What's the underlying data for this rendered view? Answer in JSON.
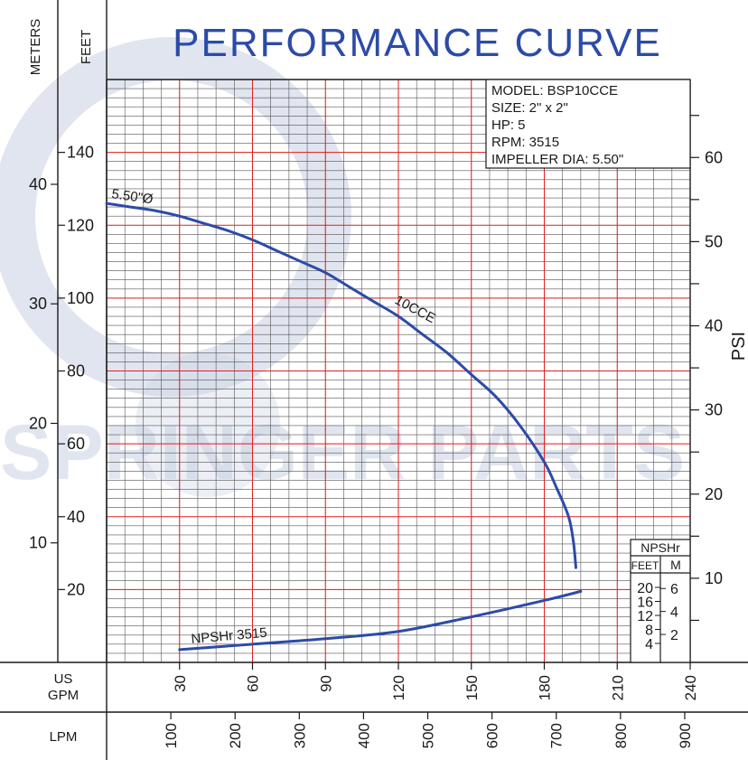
{
  "chart_data": {
    "type": "line",
    "title": "PERFORMANCE CURVE",
    "watermark": "SPRINGER PARTS",
    "info_box": {
      "model": "MODEL: BSP10CCE",
      "size": "SIZE: 2\" x 2\"",
      "hp": "HP: 5",
      "rpm": "RPM: 3515",
      "impeller": "IMPELLER DIA: 5.50\""
    },
    "axes": {
      "meters_label": "METERS",
      "feet_label": "FEET",
      "psi_label": "PSI",
      "gpm_label_1": "US",
      "gpm_label_2": "GPM",
      "lpm_label": "LPM",
      "feet_range": [
        0,
        160
      ],
      "gpm_range": [
        0,
        240
      ],
      "feet_ticks": [
        "20",
        "40",
        "60",
        "80",
        "100",
        "120",
        "140"
      ],
      "feet_tick_values": [
        20,
        40,
        60,
        80,
        100,
        120,
        140
      ],
      "meters_ticks": [
        "10",
        "20",
        "30",
        "40"
      ],
      "meters_tick_values": [
        10,
        20,
        30,
        40
      ],
      "psi_ticks": [
        "10",
        "20",
        "30",
        "40",
        "50",
        "60"
      ],
      "psi_tick_values": [
        10,
        20,
        30,
        40,
        50,
        60
      ],
      "gpm_ticks": [
        "30",
        "60",
        "90",
        "120",
        "150",
        "180",
        "210",
        "240"
      ],
      "gpm_tick_values": [
        30,
        60,
        90,
        120,
        150,
        180,
        210,
        240
      ],
      "lpm_ticks": [
        "100",
        "200",
        "300",
        "400",
        "500",
        "600",
        "700",
        "800",
        "900"
      ],
      "lpm_tick_values": [
        100,
        200,
        300,
        400,
        500,
        600,
        700,
        800,
        900
      ]
    },
    "npshr_scale": {
      "title": "NPSHr",
      "feet_label": "FEET",
      "meters_label": "M",
      "feet_ticks": [
        "4",
        "8",
        "12",
        "16",
        "20"
      ],
      "feet_values": [
        4,
        8,
        12,
        16,
        20
      ],
      "meters_ticks": [
        "2",
        "4",
        "6"
      ],
      "meters_values": [
        2,
        4,
        6
      ]
    },
    "series": [
      {
        "name": "10CCE",
        "curve_label": "5.50\"Ø",
        "color": "#2c4ba8",
        "x": [
          0,
          10,
          20,
          30,
          40,
          50,
          60,
          70,
          80,
          90,
          100,
          110,
          120,
          130,
          140,
          150,
          160,
          170,
          180,
          185,
          190,
          192,
          193
        ],
        "y": [
          126,
          125,
          124,
          122.5,
          120.5,
          118.5,
          116,
          113,
          110,
          107,
          103,
          99,
          95,
          90,
          85,
          79,
          73,
          65,
          55,
          48,
          40,
          33,
          26
        ]
      },
      {
        "name": "NPSHr 3515",
        "color": "#2c4ba8",
        "x": [
          30,
          60,
          90,
          120,
          150,
          180,
          195
        ],
        "y": [
          3.5,
          5,
          6.5,
          8.5,
          12.5,
          17,
          19.5
        ]
      }
    ],
    "grid": true,
    "watermark_color": "#c8d0e2"
  }
}
